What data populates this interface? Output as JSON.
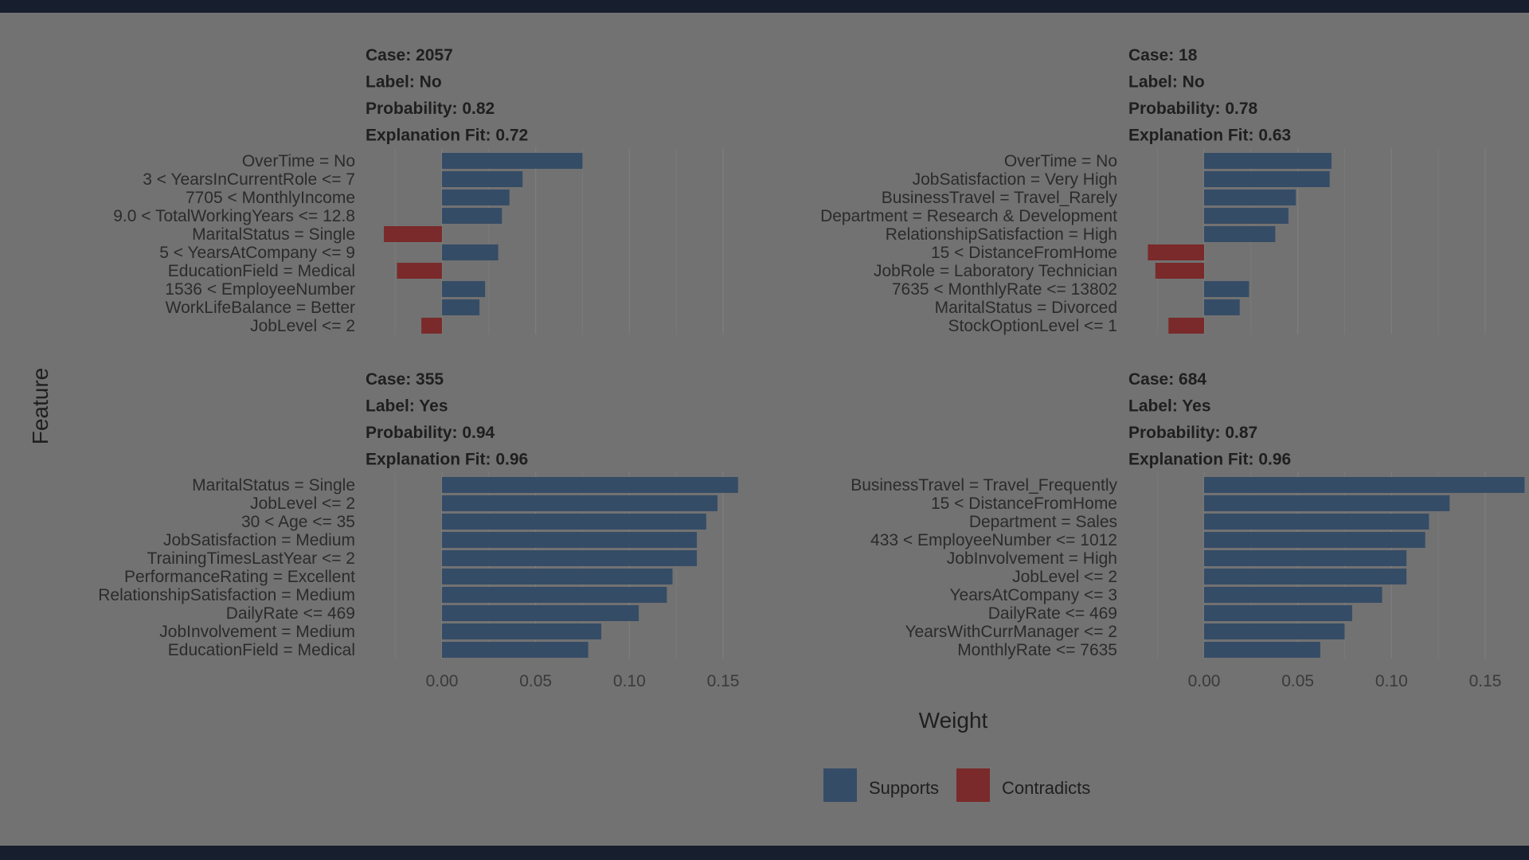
{
  "chart_data": {
    "type": "bar",
    "orientation": "horizontal",
    "xlabel": "Weight",
    "ylabel": "Feature",
    "xlim": [
      -0.025,
      0.175
    ],
    "xticks": [
      "0.00",
      "0.05",
      "0.10",
      "0.15"
    ],
    "xtick_values": [
      0,
      0.05,
      0.1,
      0.15
    ],
    "grid": true,
    "legend": {
      "position": "bottom",
      "entries": [
        {
          "label": "Supports",
          "color": "#354c66"
        },
        {
          "label": "Contradicts",
          "color": "#7a2a2a"
        }
      ]
    },
    "panels": [
      {
        "header": [
          "Case: 2057",
          "Label: No",
          "Probability: 0.82",
          "Explanation Fit: 0.72"
        ],
        "bars": [
          {
            "feature": "OverTime = No",
            "value": 0.075
          },
          {
            "feature": "3 < YearsInCurrentRole <= 7",
            "value": 0.043
          },
          {
            "feature": "7705 < MonthlyIncome",
            "value": 0.036
          },
          {
            "feature": "9.0 < TotalWorkingYears <= 12.8",
            "value": 0.032
          },
          {
            "feature": "MaritalStatus = Single",
            "value": -0.031
          },
          {
            "feature": "5 < YearsAtCompany <= 9",
            "value": 0.03
          },
          {
            "feature": "EducationField = Medical",
            "value": -0.024
          },
          {
            "feature": "1536 < EmployeeNumber",
            "value": 0.023
          },
          {
            "feature": "WorkLifeBalance = Better",
            "value": 0.02
          },
          {
            "feature": "JobLevel <= 2",
            "value": -0.011
          }
        ]
      },
      {
        "header": [
          "Case: 18",
          "Label: No",
          "Probability: 0.78",
          "Explanation Fit: 0.63"
        ],
        "bars": [
          {
            "feature": "OverTime = No",
            "value": 0.068
          },
          {
            "feature": "JobSatisfaction = Very High",
            "value": 0.067
          },
          {
            "feature": "BusinessTravel = Travel_Rarely",
            "value": 0.049
          },
          {
            "feature": "Department = Research & Development",
            "value": 0.045
          },
          {
            "feature": "RelationshipSatisfaction = High",
            "value": 0.038
          },
          {
            "feature": "15 < DistanceFromHome",
            "value": -0.03
          },
          {
            "feature": "JobRole = Laboratory Technician",
            "value": -0.026
          },
          {
            "feature": "7635 < MonthlyRate <= 13802",
            "value": 0.024
          },
          {
            "feature": "MaritalStatus = Divorced",
            "value": 0.019
          },
          {
            "feature": "StockOptionLevel <= 1",
            "value": -0.019
          }
        ]
      },
      {
        "header": [
          "Case: 355",
          "Label: Yes",
          "Probability: 0.94",
          "Explanation Fit: 0.96"
        ],
        "bars": [
          {
            "feature": "MaritalStatus = Single",
            "value": 0.158
          },
          {
            "feature": "JobLevel <= 2",
            "value": 0.147
          },
          {
            "feature": "30 < Age <= 35",
            "value": 0.141
          },
          {
            "feature": "JobSatisfaction = Medium",
            "value": 0.136
          },
          {
            "feature": "TrainingTimesLastYear <= 2",
            "value": 0.136
          },
          {
            "feature": "PerformanceRating = Excellent",
            "value": 0.123
          },
          {
            "feature": "RelationshipSatisfaction = Medium",
            "value": 0.12
          },
          {
            "feature": "DailyRate <= 469",
            "value": 0.105
          },
          {
            "feature": "JobInvolvement = Medium",
            "value": 0.085
          },
          {
            "feature": "EducationField = Medical",
            "value": 0.078
          }
        ]
      },
      {
        "header": [
          "Case: 684",
          "Label: Yes",
          "Probability: 0.87",
          "Explanation Fit: 0.96"
        ],
        "bars": [
          {
            "feature": "BusinessTravel = Travel_Frequently",
            "value": 0.171
          },
          {
            "feature": "15 < DistanceFromHome",
            "value": 0.131
          },
          {
            "feature": "Department = Sales",
            "value": 0.12
          },
          {
            "feature": "433 < EmployeeNumber <= 1012",
            "value": 0.118
          },
          {
            "feature": "JobInvolvement = High",
            "value": 0.108
          },
          {
            "feature": "JobLevel <= 2",
            "value": 0.108
          },
          {
            "feature": "YearsAtCompany <= 3",
            "value": 0.095
          },
          {
            "feature": "DailyRate <= 469",
            "value": 0.079
          },
          {
            "feature": "YearsWithCurrManager <= 2",
            "value": 0.075
          },
          {
            "feature": "MonthlyRate <= 7635",
            "value": 0.062
          }
        ]
      }
    ]
  }
}
